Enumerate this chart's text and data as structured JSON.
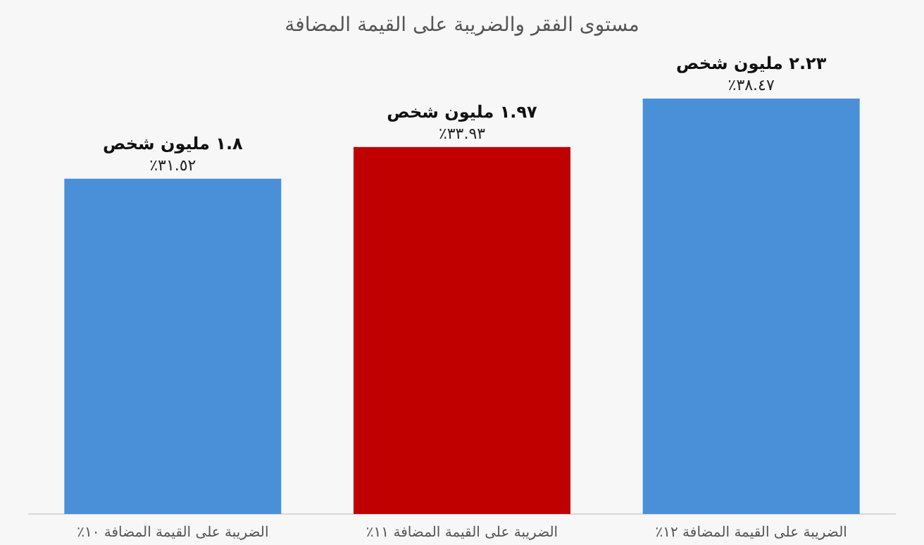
{
  "chart_data": {
    "type": "bar",
    "title": "مستوى الفقر والضريبة على القيمة المضافة",
    "categories": [
      "الضريبة على القيمة المضافة ١٠٪",
      "الضريبة على القيمة المضافة ١١٪",
      "الضريبة على القيمة المضافة ١٢٪"
    ],
    "values": [
      1.8,
      1.97,
      2.23
    ],
    "colors": [
      "#4a90d9",
      "#c00000",
      "#4a90d9"
    ],
    "value_labels": [
      "١.٨ مليون شخص",
      "١.٩٧ مليون شخص",
      "٢.٢٣ مليون شخص"
    ],
    "annotations": [
      {
        "text": "٣١.٥٢٪",
        "x": "الضريبة على القيمة المضافة ١٠٪",
        "y": 1.8
      },
      {
        "text": "٣٣.٩٣٪",
        "x": "الضريبة على القيمة المضافة ١١٪",
        "y": 1.97
      },
      {
        "text": "٣٨.٤٧٪",
        "x": "الضريبة على القيمة المضافة ١٢٪",
        "y": 2.23
      }
    ]
  }
}
